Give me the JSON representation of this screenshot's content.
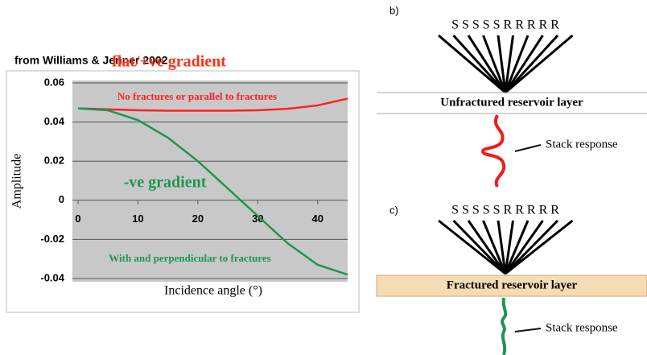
{
  "chart_data": {
    "type": "line",
    "source": "from Williams & Jenner 2002",
    "annotations": [
      "flat/+ve gradient",
      "-ve gradient"
    ],
    "y_label": "Amplitude",
    "x_label": "Incidence angle (°)",
    "x": [
      0,
      5,
      10,
      15,
      20,
      25,
      30,
      35,
      40,
      45
    ],
    "xlim": [
      0,
      45
    ],
    "xticks": [
      0,
      10,
      20,
      30,
      40
    ],
    "ylim": [
      -0.04,
      0.06
    ],
    "yticks": [
      -0.04,
      -0.02,
      0,
      0.02,
      0.04,
      0.06
    ],
    "grid": true,
    "series": [
      {
        "name": "No fractures or parallel to fractures",
        "color": "#ff2020",
        "values": [
          0.047,
          0.0465,
          0.046,
          0.0458,
          0.0458,
          0.0458,
          0.046,
          0.0468,
          0.0485,
          0.052
        ]
      },
      {
        "name": "With and perpendicular to fractures",
        "color": "#1e9650",
        "values": [
          0.047,
          0.046,
          0.041,
          0.032,
          0.02,
          0.006,
          -0.008,
          -0.022,
          -0.033,
          -0.038
        ]
      }
    ]
  },
  "diagrams": [
    {
      "label": "b)",
      "sources": "SSSSSRRRRR",
      "layer": "Unfractured reservoir layer",
      "response": "Stack response"
    },
    {
      "label": "c)",
      "sources": "SSSSSRRRRR",
      "layer": "Fractured reservoir layer",
      "response": "Stack response"
    }
  ]
}
